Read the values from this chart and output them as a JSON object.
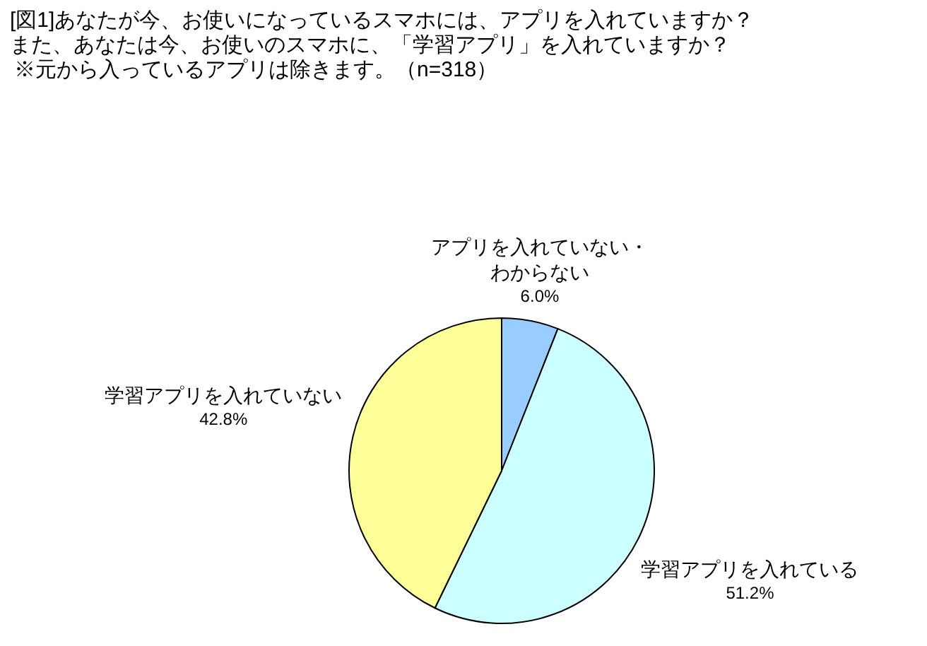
{
  "chart_data": {
    "type": "pie",
    "title": "[図1]あなたが今、お使いになっているスマホには、アプリを入れていますか？",
    "subtitle": "また、あなたは今、お使いのスマホに、「学習アプリ」を入れていますか？",
    "annotations": [
      "※元から入っているアプリは除きます。（n=318）"
    ],
    "categories": [
      "アプリを入れていない・わからない",
      "学習アプリを入れている",
      "学習アプリを入れていない"
    ],
    "values": [
      6.0,
      51.2,
      42.8
    ],
    "colors": [
      "#99ccff",
      "#ccffff",
      "#ffff99"
    ],
    "value_labels": [
      "6.0%",
      "51.2%",
      "42.8%"
    ]
  }
}
